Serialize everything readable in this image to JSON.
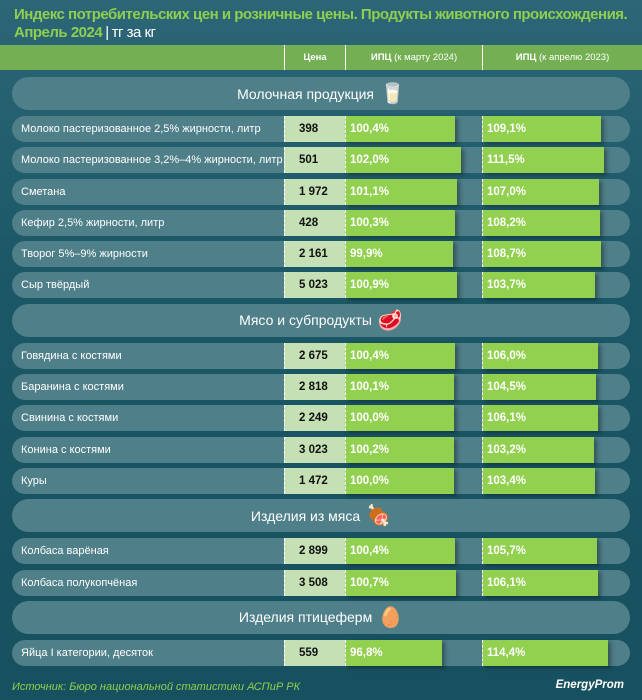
{
  "header": {
    "title_line1": "Индекс потребительских цен и розничные цены. Продукты животного происхождения.",
    "period": "Апрель 2024",
    "separator": "|",
    "unit": "тг за кг"
  },
  "columns": {
    "price": "Цена",
    "cpi1_main": "ИПЦ",
    "cpi1_note": "(к марту 2024)",
    "cpi2_main": "ИПЦ",
    "cpi2_note": "(к апрелю 2023)"
  },
  "chart_data": {
    "type": "table",
    "title": "Индекс потребительских цен и розничные цены. Продукты животного происхождения. Апрель 2024",
    "columns": [
      "Цена",
      "ИПЦ (к марту 2024)",
      "ИПЦ (к апрелю 2023)"
    ],
    "sections": [
      {
        "name": "Молочная продукция",
        "icon": "dairy-icon",
        "glyph": "🥛",
        "rows": [
          {
            "name": "Молоко пастеризованное 2,5% жирности, литр",
            "price": "398",
            "cpi1": "100,4%",
            "cpi2": "109,1%",
            "v1": 100.4,
            "v2": 109.1
          },
          {
            "name": "Молоко пастеризованное 3,2%–4% жирности, литр",
            "price": "501",
            "cpi1": "102,0%",
            "cpi2": "111,5%",
            "v1": 102.0,
            "v2": 111.5
          },
          {
            "name": "Сметана",
            "price": "1 972",
            "cpi1": "101,1%",
            "cpi2": "107,0%",
            "v1": 101.1,
            "v2": 107.0
          },
          {
            "name": "Кефир 2,5% жирности, литр",
            "price": "428",
            "cpi1": "100,3%",
            "cpi2": "108,2%",
            "v1": 100.3,
            "v2": 108.2
          },
          {
            "name": "Творог 5%–9% жирности",
            "price": "2 161",
            "cpi1": "99,9%",
            "cpi2": "108,7%",
            "v1": 99.9,
            "v2": 108.7
          },
          {
            "name": "Сыр твёрдый",
            "price": "5 023",
            "cpi1": "100,9%",
            "cpi2": "103,7%",
            "v1": 100.9,
            "v2": 103.7
          }
        ]
      },
      {
        "name": "Мясо и субпродукты",
        "icon": "meat-icon",
        "glyph": "🥩",
        "rows": [
          {
            "name": "Говядина с костями",
            "price": "2 675",
            "cpi1": "100,4%",
            "cpi2": "106,0%",
            "v1": 100.4,
            "v2": 106.0
          },
          {
            "name": "Баранина с костями",
            "price": "2 818",
            "cpi1": "100,1%",
            "cpi2": "104,5%",
            "v1": 100.1,
            "v2": 104.5
          },
          {
            "name": "Свинина с костями",
            "price": "2 249",
            "cpi1": "100,0%",
            "cpi2": "106,1%",
            "v1": 100.0,
            "v2": 106.1
          },
          {
            "name": "Конина с костями",
            "price": "3 023",
            "cpi1": "100,2%",
            "cpi2": "103,2%",
            "v1": 100.2,
            "v2": 103.2
          },
          {
            "name": "Куры",
            "price": "1 472",
            "cpi1": "100,0%",
            "cpi2": "103,4%",
            "v1": 100.0,
            "v2": 103.4
          }
        ]
      },
      {
        "name": "Изделия из мяса",
        "icon": "sausage-icon",
        "glyph": "🍖",
        "rows": [
          {
            "name": "Колбаса варёная",
            "price": "2 899",
            "cpi1": "100,4%",
            "cpi2": "105,7%",
            "v1": 100.4,
            "v2": 105.7
          },
          {
            "name": "Колбаса полукопчёная",
            "price": "3 508",
            "cpi1": "100,7%",
            "cpi2": "106,1%",
            "v1": 100.7,
            "v2": 106.1
          }
        ]
      },
      {
        "name": "Изделия птицеферм",
        "icon": "eggs-icon",
        "glyph": "🥚",
        "rows": [
          {
            "name": "Яйца I категории, десяток",
            "price": "559",
            "cpi1": "96,8%",
            "cpi2": "114,4%",
            "v1": 96.8,
            "v2": 114.4
          }
        ]
      }
    ]
  },
  "footer": {
    "source": "Источник: Бюро национальной статистики АСПиР РК",
    "logo": "EnergyProm"
  }
}
